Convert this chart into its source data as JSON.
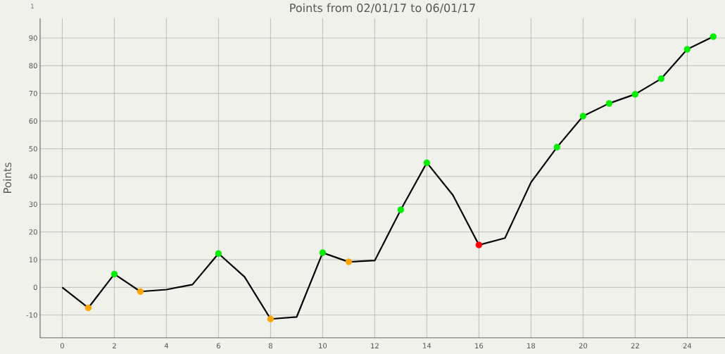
{
  "chart_data": {
    "type": "line",
    "title": "Points from 02/01/17 to 06/01/17",
    "ylabel": "Points",
    "annotations": [
      "1"
    ],
    "series": [
      {
        "type": "line",
        "color": "#000000",
        "line_style": "solid",
        "marker": "none",
        "x": [
          0,
          1,
          2,
          3,
          4,
          5,
          6,
          7,
          8,
          9,
          10,
          11,
          12,
          13,
          14,
          15,
          16,
          17,
          18,
          19,
          20,
          21,
          22,
          23,
          24,
          25
        ],
        "values": [
          0,
          -7.4,
          4.8,
          -1.5,
          -0.8,
          1.0,
          12.2,
          3.8,
          -11.4,
          -10.7,
          12.5,
          9.2,
          9.7,
          28.0,
          45.0,
          33.3,
          15.3,
          17.8,
          37.9,
          50.6,
          61.8,
          66.4,
          69.7,
          75.3,
          85.9,
          90.5
        ]
      },
      {
        "type": "scatter",
        "marker": "circle",
        "x": [
          1,
          2,
          3,
          6,
          8,
          10,
          11,
          13,
          14,
          16,
          19,
          20,
          21,
          22,
          23,
          24,
          25
        ],
        "values": [
          -7.4,
          4.8,
          -1.5,
          12.2,
          -11.4,
          12.5,
          9.2,
          28.0,
          45.0,
          15.3,
          50.6,
          61.8,
          66.4,
          69.7,
          75.3,
          85.9,
          90.5
        ],
        "colors": [
          "#ffa500",
          "#00ee00",
          "#ffa500",
          "#00ee00",
          "#ffa500",
          "#00ee00",
          "#ffa500",
          "#00ee00",
          "#00ee00",
          "#ff0000",
          "#00ee00",
          "#00ee00",
          "#00ee00",
          "#00ee00",
          "#00ee00",
          "#00ee00",
          "#00ee00"
        ]
      }
    ],
    "xlim": [
      -0.85,
      25.45
    ],
    "ylim": [
      -18.2,
      97.1
    ],
    "xticks": [
      0,
      2,
      4,
      6,
      8,
      10,
      12,
      14,
      16,
      18,
      20,
      22,
      24
    ],
    "yticks": [
      -10,
      0,
      10,
      20,
      30,
      40,
      50,
      60,
      70,
      80,
      90
    ],
    "grid": true
  }
}
